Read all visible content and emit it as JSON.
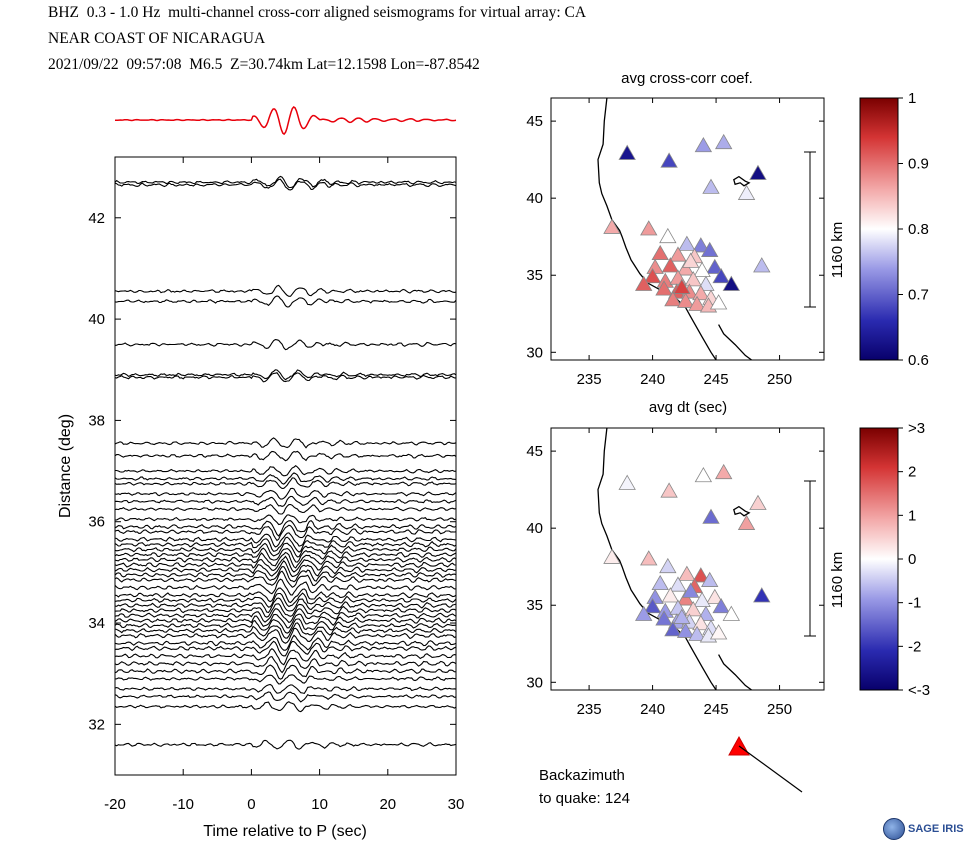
{
  "header": {
    "line1": "BHZ  0.3 - 1.0 Hz  multi-channel cross-corr aligned seismograms for virtual array: CA",
    "line2": "NEAR COAST OF NICARAGUA",
    "line3": "2021/09/22  09:57:08  M6.5  Z=30.74km Lat=12.1598 Lon=-87.8542"
  },
  "chart_data": [
    {
      "type": "line",
      "title": "",
      "xlabel": "Time relative to P (sec)",
      "ylabel": "Distance (deg)",
      "xlim": [
        -20,
        30
      ],
      "ylim": [
        31,
        43.2
      ],
      "xticks": [
        "-20",
        "-10",
        "0",
        "10",
        "20",
        "30"
      ],
      "yticks": [
        "32",
        "34",
        "36",
        "38",
        "40",
        "42"
      ],
      "stack_trace_color": "#e8000b",
      "trace_color": "#000000",
      "trace_distances_deg": [
        42.7,
        42.65,
        40.55,
        40.35,
        39.5,
        38.9,
        38.85,
        37.55,
        37.3,
        37.0,
        36.85,
        36.75,
        36.55,
        36.4,
        36.25,
        36.05,
        35.9,
        35.8,
        35.65,
        35.55,
        35.45,
        35.35,
        35.25,
        35.15,
        35.05,
        34.95,
        34.85,
        34.7,
        34.55,
        34.45,
        34.35,
        34.25,
        34.15,
        34.05,
        33.95,
        33.85,
        33.75,
        33.6,
        33.5,
        33.35,
        33.2,
        33.05,
        32.9,
        32.7,
        32.55,
        32.35,
        31.6
      ]
    },
    {
      "type": "scatter",
      "title": "avg cross-corr coef.",
      "xlabel": "avg dt (sec)",
      "ylabel": "",
      "xlim": [
        232,
        253.5
      ],
      "ylim": [
        29.5,
        46.5
      ],
      "xticks": [
        "235",
        "240",
        "245",
        "250"
      ],
      "yticks": [
        "30",
        "35",
        "40",
        "45"
      ],
      "scale_bar_label": "1160 km",
      "colorbar": {
        "min": 0.6,
        "max": 1.0,
        "ticks": [
          "0.6",
          "0.7",
          "0.8",
          "0.9",
          "1"
        ]
      },
      "points": [
        {
          "lon": 238.0,
          "lat": 42.9,
          "v": 0.63
        },
        {
          "lon": 241.3,
          "lat": 42.4,
          "v": 0.68
        },
        {
          "lon": 244.0,
          "lat": 43.4,
          "v": 0.74
        },
        {
          "lon": 245.6,
          "lat": 43.6,
          "v": 0.75
        },
        {
          "lon": 248.3,
          "lat": 41.6,
          "v": 0.62
        },
        {
          "lon": 244.6,
          "lat": 40.7,
          "v": 0.76
        },
        {
          "lon": 247.4,
          "lat": 40.3,
          "v": 0.79
        },
        {
          "lon": 236.8,
          "lat": 38.1,
          "v": 0.86
        },
        {
          "lon": 239.7,
          "lat": 38.0,
          "v": 0.87
        },
        {
          "lon": 241.2,
          "lat": 37.5,
          "v": 0.8
        },
        {
          "lon": 242.7,
          "lat": 37.0,
          "v": 0.76
        },
        {
          "lon": 243.8,
          "lat": 36.9,
          "v": 0.72
        },
        {
          "lon": 244.5,
          "lat": 36.6,
          "v": 0.71
        },
        {
          "lon": 248.6,
          "lat": 35.6,
          "v": 0.76
        },
        {
          "lon": 240.6,
          "lat": 36.4,
          "v": 0.9
        },
        {
          "lon": 242.0,
          "lat": 36.3,
          "v": 0.87
        },
        {
          "lon": 243.3,
          "lat": 36.2,
          "v": 0.84
        },
        {
          "lon": 244.9,
          "lat": 35.5,
          "v": 0.7
        },
        {
          "lon": 245.4,
          "lat": 34.9,
          "v": 0.68
        },
        {
          "lon": 246.2,
          "lat": 34.4,
          "v": 0.62
        },
        {
          "lon": 240.2,
          "lat": 35.5,
          "v": 0.88
        },
        {
          "lon": 241.4,
          "lat": 35.6,
          "v": 0.91
        },
        {
          "lon": 242.6,
          "lat": 35.4,
          "v": 0.86
        },
        {
          "lon": 243.9,
          "lat": 35.3,
          "v": 0.8
        },
        {
          "lon": 240.0,
          "lat": 34.9,
          "v": 0.92
        },
        {
          "lon": 241.0,
          "lat": 34.6,
          "v": 0.89
        },
        {
          "lon": 242.0,
          "lat": 34.8,
          "v": 0.87
        },
        {
          "lon": 243.2,
          "lat": 34.7,
          "v": 0.84
        },
        {
          "lon": 244.2,
          "lat": 34.4,
          "v": 0.78
        },
        {
          "lon": 240.9,
          "lat": 34.1,
          "v": 0.9
        },
        {
          "lon": 241.9,
          "lat": 33.9,
          "v": 0.91
        },
        {
          "lon": 242.9,
          "lat": 33.9,
          "v": 0.88
        },
        {
          "lon": 243.8,
          "lat": 33.8,
          "v": 0.86
        },
        {
          "lon": 244.6,
          "lat": 33.5,
          "v": 0.83
        },
        {
          "lon": 241.6,
          "lat": 33.4,
          "v": 0.89
        },
        {
          "lon": 242.6,
          "lat": 33.3,
          "v": 0.88
        },
        {
          "lon": 243.5,
          "lat": 33.1,
          "v": 0.87
        },
        {
          "lon": 244.4,
          "lat": 33.0,
          "v": 0.85
        },
        {
          "lon": 245.2,
          "lat": 33.2,
          "v": 0.8
        },
        {
          "lon": 239.3,
          "lat": 34.4,
          "v": 0.91
        },
        {
          "lon": 242.3,
          "lat": 34.2,
          "v": 0.93
        },
        {
          "lon": 243.0,
          "lat": 35.9,
          "v": 0.83
        }
      ]
    },
    {
      "type": "scatter",
      "title": "",
      "xlabel": "",
      "ylabel": "",
      "xlim": [
        232,
        253.5
      ],
      "ylim": [
        29.5,
        46.5
      ],
      "xticks": [
        "235",
        "240",
        "245",
        "250"
      ],
      "yticks": [
        "30",
        "35",
        "40",
        "45"
      ],
      "scale_bar_label": "1160 km",
      "colorbar": {
        "min": -3,
        "max": 3,
        "ticks": [
          "<-3",
          "-2",
          "-1",
          "0",
          "1",
          "2",
          ">3"
        ]
      },
      "points": [
        {
          "lon": 238.0,
          "lat": 42.9,
          "v": -0.1
        },
        {
          "lon": 241.3,
          "lat": 42.4,
          "v": 0.6
        },
        {
          "lon": 244.0,
          "lat": 43.4,
          "v": 0.0
        },
        {
          "lon": 245.6,
          "lat": 43.6,
          "v": 0.9
        },
        {
          "lon": 248.3,
          "lat": 41.6,
          "v": 0.5
        },
        {
          "lon": 244.6,
          "lat": 40.7,
          "v": -1.4
        },
        {
          "lon": 247.4,
          "lat": 40.3,
          "v": 1.0
        },
        {
          "lon": 236.8,
          "lat": 38.1,
          "v": 0.2
        },
        {
          "lon": 239.7,
          "lat": 38.0,
          "v": 0.7
        },
        {
          "lon": 241.2,
          "lat": 37.5,
          "v": -0.4
        },
        {
          "lon": 242.7,
          "lat": 37.0,
          "v": 0.7
        },
        {
          "lon": 243.8,
          "lat": 36.9,
          "v": 1.8
        },
        {
          "lon": 244.5,
          "lat": 36.6,
          "v": -0.6
        },
        {
          "lon": 248.6,
          "lat": 35.6,
          "v": -2.0
        },
        {
          "lon": 240.6,
          "lat": 36.4,
          "v": -0.6
        },
        {
          "lon": 242.0,
          "lat": 36.3,
          "v": -0.3
        },
        {
          "lon": 243.3,
          "lat": 36.2,
          "v": 1.6
        },
        {
          "lon": 244.9,
          "lat": 35.5,
          "v": 0.3
        },
        {
          "lon": 245.4,
          "lat": 34.9,
          "v": -1.2
        },
        {
          "lon": 246.2,
          "lat": 34.4,
          "v": 0.0
        },
        {
          "lon": 240.2,
          "lat": 35.5,
          "v": -1.0
        },
        {
          "lon": 241.4,
          "lat": 35.6,
          "v": 0.2
        },
        {
          "lon": 242.6,
          "lat": 35.4,
          "v": 1.3
        },
        {
          "lon": 243.9,
          "lat": 35.3,
          "v": -0.2
        },
        {
          "lon": 240.0,
          "lat": 34.9,
          "v": -1.6
        },
        {
          "lon": 241.0,
          "lat": 34.6,
          "v": -0.9
        },
        {
          "lon": 242.0,
          "lat": 34.8,
          "v": -0.5
        },
        {
          "lon": 243.2,
          "lat": 34.7,
          "v": 0.5
        },
        {
          "lon": 244.2,
          "lat": 34.4,
          "v": -0.7
        },
        {
          "lon": 240.9,
          "lat": 34.1,
          "v": -1.3
        },
        {
          "lon": 241.9,
          "lat": 33.9,
          "v": -0.8
        },
        {
          "lon": 242.9,
          "lat": 33.9,
          "v": -0.4
        },
        {
          "lon": 243.8,
          "lat": 33.8,
          "v": 0.3
        },
        {
          "lon": 244.6,
          "lat": 33.5,
          "v": -0.3
        },
        {
          "lon": 241.6,
          "lat": 33.4,
          "v": -1.5
        },
        {
          "lon": 242.6,
          "lat": 33.3,
          "v": -1.0
        },
        {
          "lon": 243.5,
          "lat": 33.1,
          "v": -0.6
        },
        {
          "lon": 244.4,
          "lat": 33.0,
          "v": -0.2
        },
        {
          "lon": 245.2,
          "lat": 33.2,
          "v": 0.1
        },
        {
          "lon": 239.3,
          "lat": 34.4,
          "v": -0.9
        },
        {
          "lon": 242.3,
          "lat": 34.2,
          "v": -0.7
        },
        {
          "lon": 243.0,
          "lat": 35.9,
          "v": -1.1
        }
      ]
    }
  ],
  "backazimuth": {
    "label_line1": "Backazimuth",
    "label_line2": "to quake:  124",
    "value_deg": 124,
    "marker_color": "#ff0000"
  },
  "logo": {
    "text": "SAGE IRIS",
    "icon": "nsf-globe-icon"
  }
}
